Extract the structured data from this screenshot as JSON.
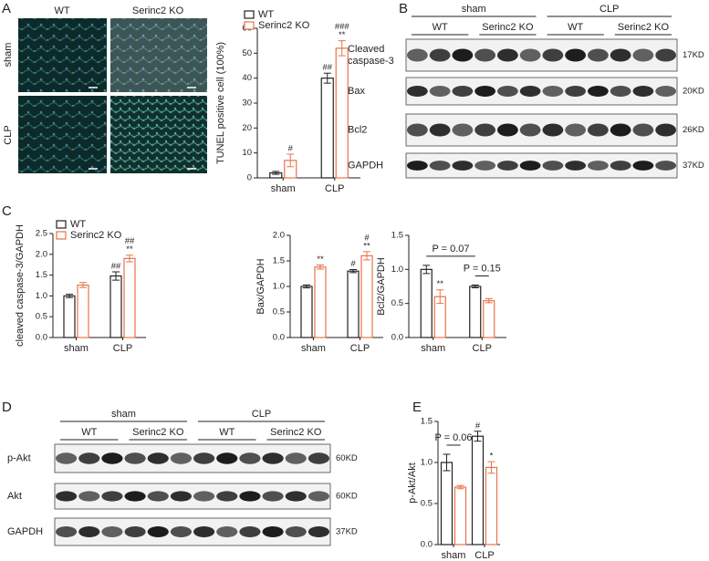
{
  "figure": {
    "panel_labels": [
      "A",
      "B",
      "C",
      "D",
      "E"
    ]
  },
  "micrographs": {
    "columns": [
      "WT",
      "Serinc2 KO"
    ],
    "rows": [
      "sham",
      "CLP"
    ]
  },
  "blot_b": {
    "groups": [
      "sham",
      "CLP"
    ],
    "subgroups": [
      "WT",
      "Serinc2 KO",
      "WT",
      "Serinc2 KO"
    ],
    "rows": [
      {
        "label": [
          "Cleaved",
          "caspase-3"
        ],
        "size": "17KD"
      },
      {
        "label": [
          "Bax"
        ],
        "size": "20KD"
      },
      {
        "label": [
          "Bcl2"
        ],
        "size": "26KD"
      },
      {
        "label": [
          "GAPDH"
        ],
        "size": "37KD"
      }
    ]
  },
  "blot_d": {
    "groups": [
      "sham",
      "CLP"
    ],
    "subgroups": [
      "WT",
      "Serinc2 KO",
      "WT",
      "Serinc2 KO"
    ],
    "rows": [
      {
        "label": [
          "p-Akt"
        ],
        "size": "60KD"
      },
      {
        "label": [
          "Akt"
        ],
        "size": "60KD"
      },
      {
        "label": [
          "GAPDH"
        ],
        "size": "37KD"
      }
    ]
  },
  "chart_data": [
    {
      "type": "bar",
      "y_label": "TUNEL positive cell (100%)",
      "categories": [
        "sham",
        "CLP"
      ],
      "series": [
        {
          "name": "WT",
          "color": "#222222",
          "values": [
            2,
            40
          ],
          "errors": [
            0.6,
            2
          ]
        },
        {
          "name": "Serinc2 KO",
          "color": "#e8734a",
          "values": [
            7,
            52
          ],
          "errors": [
            2.5,
            3
          ]
        }
      ],
      "ylim": [
        0,
        60
      ],
      "yticks": [
        0,
        10,
        20,
        30,
        40,
        50,
        60
      ],
      "legend": "upper-left",
      "annotations": [
        {
          "text": "#",
          "series": 1,
          "index": 0
        },
        {
          "text": "##",
          "series": 0,
          "index": 1
        },
        {
          "text": "**",
          "series": 1,
          "index": 1
        },
        {
          "text": "###",
          "series": 1,
          "index": 1
        }
      ]
    },
    {
      "type": "bar",
      "y_label": "cleaved caspase-3/GAPDH",
      "categories": [
        "sham",
        "CLP"
      ],
      "series": [
        {
          "name": "WT",
          "color": "#222222",
          "values": [
            1.0,
            1.48
          ],
          "errors": [
            0.04,
            0.1
          ]
        },
        {
          "name": "Serinc2 KO",
          "color": "#e8734a",
          "values": [
            1.26,
            1.9
          ],
          "errors": [
            0.06,
            0.08
          ]
        }
      ],
      "ylim": [
        0,
        2.5
      ],
      "yticks": [
        {
          "value": 0,
          "label": "0.0"
        },
        0.5,
        {
          "value": 1,
          "label": "1.0"
        },
        1.5,
        {
          "value": 2,
          "label": "2.0"
        },
        2.5
      ],
      "legend": "upper-left",
      "annotations": [
        {
          "text": "##",
          "series": 0,
          "index": 1
        },
        {
          "text": "**",
          "series": 1,
          "index": 1
        },
        {
          "text": "##",
          "series": 1,
          "index": 1
        }
      ]
    },
    {
      "type": "bar",
      "y_label": "Bax/GAPDH",
      "categories": [
        "sham",
        "CLP"
      ],
      "series": [
        {
          "color": "#222222",
          "values": [
            1.0,
            1.3
          ],
          "errors": [
            0.03,
            0.03
          ]
        },
        {
          "color": "#e8734a",
          "values": [
            1.38,
            1.6
          ],
          "errors": [
            0.04,
            0.08
          ]
        }
      ],
      "ylim": [
        0,
        2
      ],
      "yticks": [
        {
          "value": 0,
          "label": "0.0"
        },
        0.5,
        {
          "value": 1,
          "label": "1.0"
        },
        1.5,
        {
          "value": 2,
          "label": "2.0"
        }
      ],
      "annotations": [
        {
          "text": "**",
          "series": 1,
          "index": 0
        },
        {
          "text": "#",
          "series": 0,
          "index": 1
        },
        {
          "text": "**",
          "series": 1,
          "index": 1
        },
        {
          "text": "#",
          "series": 1,
          "index": 1
        }
      ]
    },
    {
      "type": "bar",
      "y_label": "Bcl2/GAPDH",
      "categories": [
        "sham",
        "CLP"
      ],
      "series": [
        {
          "color": "#222222",
          "values": [
            1.0,
            0.75
          ],
          "errors": [
            0.06,
            0.02
          ]
        },
        {
          "color": "#e8734a",
          "values": [
            0.6,
            0.54
          ],
          "errors": [
            0.1,
            0.03
          ]
        }
      ],
      "ylim": [
        0,
        1.5
      ],
      "yticks": [
        {
          "value": 0,
          "label": "0.0"
        },
        0.5,
        {
          "value": 1,
          "label": "1.0"
        },
        1.5
      ],
      "annotations": [
        {
          "text": "**",
          "series": 1,
          "index": 0
        }
      ],
      "brackets": [
        {
          "text": "P = 0.07",
          "from": [
            0,
            0
          ],
          "to": [
            0,
            1
          ]
        },
        {
          "text": "P = 0.15",
          "from": [
            0,
            1
          ],
          "to": [
            1,
            1
          ]
        }
      ]
    },
    {
      "type": "bar",
      "y_label": "p-Akt/Akt",
      "categories": [
        "sham",
        "CLP"
      ],
      "series": [
        {
          "color": "#222222",
          "values": [
            1.0,
            1.32
          ],
          "errors": [
            0.1,
            0.06
          ]
        },
        {
          "color": "#e8734a",
          "values": [
            0.7,
            0.94
          ],
          "errors": [
            0.02,
            0.07
          ]
        }
      ],
      "ylim": [
        0,
        1.5
      ],
      "yticks": [
        {
          "value": 0,
          "label": "0.0"
        },
        0.5,
        {
          "value": 1,
          "label": "1.0"
        },
        1.5
      ],
      "annotations": [
        {
          "text": "#",
          "series": 0,
          "index": 1
        },
        {
          "text": "*",
          "series": 1,
          "index": 1
        }
      ],
      "brackets": [
        {
          "text": "P = 0.06",
          "from": [
            0,
            0
          ],
          "to": [
            1,
            0
          ]
        }
      ]
    }
  ]
}
